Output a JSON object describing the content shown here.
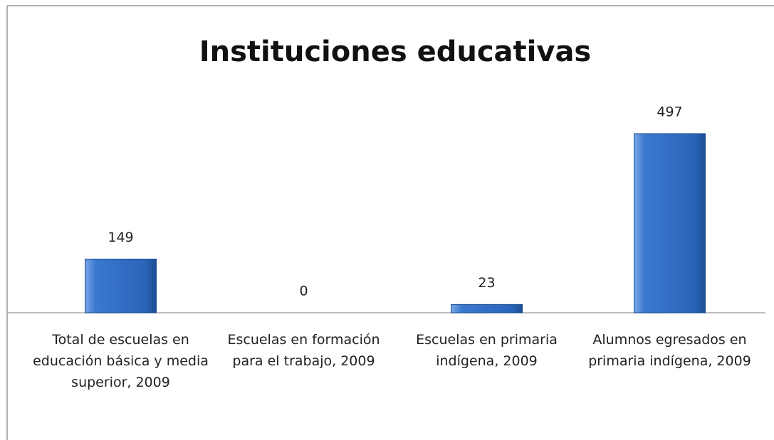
{
  "chart_data": {
    "type": "bar",
    "title": "Instituciones educativas",
    "categories": [
      "Total de escuelas en educación básica y media superior, 2009",
      "Escuelas en formación para el trabajo, 2009",
      "Escuelas en primaria indígena, 2009",
      "Alumnos egresados en primaria indígena, 2009"
    ],
    "values": [
      149,
      0,
      23,
      497
    ],
    "color": "#2f6fc6"
  }
}
